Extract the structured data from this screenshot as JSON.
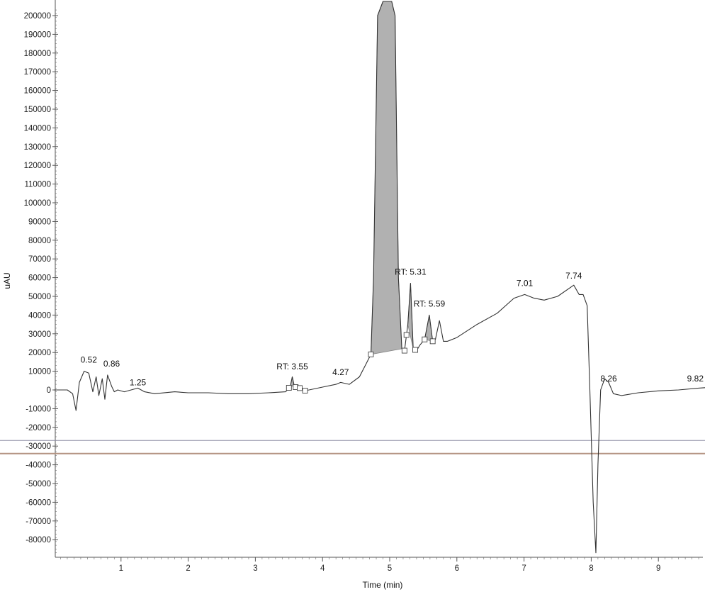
{
  "chart_data": {
    "type": "line",
    "title": "",
    "xlabel": "Time (min)",
    "ylabel": "uAU",
    "xlim": [
      0,
      9.82
    ],
    "ylim": [
      -87000,
      204000
    ],
    "x_ticks": [
      1,
      2,
      3,
      4,
      5,
      6,
      7,
      8,
      9
    ],
    "y_ticks": [
      200000,
      190000,
      180000,
      170000,
      160000,
      150000,
      140000,
      130000,
      120000,
      110000,
      100000,
      90000,
      80000,
      70000,
      60000,
      50000,
      40000,
      30000,
      20000,
      10000,
      0,
      -10000,
      -20000,
      -30000,
      -40000,
      -50000,
      -60000,
      -70000,
      -80000
    ],
    "grid": false,
    "legend": "none",
    "colors": {
      "trace": "#333333",
      "fill": "#a9a9a9",
      "ref_line_1": "#8e8ea4",
      "ref_line_2": "#b49482"
    },
    "series": [
      {
        "x": [
          0.0,
          0.2,
          0.28,
          0.33,
          0.38,
          0.45,
          0.52,
          0.58,
          0.63,
          0.67,
          0.72,
          0.76,
          0.8,
          0.86,
          0.9,
          0.95,
          1.05,
          1.15,
          1.25,
          1.35,
          1.5,
          1.8,
          2.0,
          2.3,
          2.6,
          2.9,
          3.2,
          3.45,
          3.52,
          3.55,
          3.58,
          3.62,
          3.67,
          3.72,
          3.8,
          4.0,
          4.2,
          4.27,
          4.4,
          4.55,
          4.65,
          4.72,
          4.76,
          4.82,
          4.9,
          4.97,
          5.03,
          5.08,
          5.13,
          5.18,
          5.22,
          5.27,
          5.31,
          5.35,
          5.4,
          5.45,
          5.52,
          5.59,
          5.64,
          5.68,
          5.74,
          5.8,
          5.86,
          6.0,
          6.3,
          6.6,
          6.85,
          7.01,
          7.15,
          7.3,
          7.5,
          7.74,
          7.82,
          7.88,
          7.94,
          7.98,
          8.03,
          8.07,
          8.1,
          8.14,
          8.2,
          8.26,
          8.33,
          8.45,
          8.7,
          9.0,
          9.3,
          9.6,
          9.82
        ],
        "y": [
          0,
          0,
          -2000,
          -11000,
          4000,
          10000,
          9000,
          -1000,
          7000,
          -3000,
          6000,
          -5000,
          8000,
          2000,
          -1000,
          0,
          -1000,
          0,
          1000,
          -1000,
          -2000,
          -1000,
          -1500,
          -1500,
          -2000,
          -2000,
          -1500,
          -1000,
          2000,
          7000,
          2000,
          1000,
          1000,
          -500,
          0,
          1500,
          3000,
          4000,
          3000,
          7000,
          14000,
          19000,
          60000,
          200000,
          208000,
          210000,
          208000,
          200000,
          60000,
          22000,
          21000,
          35000,
          57000,
          22000,
          21000,
          24000,
          27000,
          40000,
          26000,
          27000,
          37000,
          26000,
          26000,
          28000,
          35000,
          41000,
          49000,
          51000,
          49000,
          48000,
          50000,
          56000,
          51000,
          51000,
          45000,
          0,
          -60000,
          -87000,
          -40000,
          0,
          6000,
          4000,
          -2000,
          -3000,
          -1500,
          -500,
          0,
          1000,
          1500
        ]
      }
    ],
    "shaded_peaks": [
      {
        "x_start": 4.72,
        "x_end": 5.18
      },
      {
        "x_start": 5.27,
        "x_end": 5.35
      },
      {
        "x_start": 5.52,
        "x_end": 5.64
      },
      {
        "x_start": 3.52,
        "x_end": 3.58
      }
    ],
    "integration_markers_x": [
      3.5,
      3.6,
      3.66,
      3.74,
      4.72,
      5.22,
      5.25,
      5.38,
      5.52,
      5.64
    ],
    "peak_labels": [
      {
        "text": "0.52",
        "x": 0.52,
        "y": 13000
      },
      {
        "text": "0.86",
        "x": 0.86,
        "y": 11000
      },
      {
        "text": "1.25",
        "x": 1.25,
        "y": 1000
      },
      {
        "text": "RT: 3.55",
        "x": 3.55,
        "y": 9500
      },
      {
        "text": "4.27",
        "x": 4.27,
        "y": 6500
      },
      {
        "text": "RT: 5.31",
        "x": 5.31,
        "y": 60000
      },
      {
        "text": "RT: 5.59",
        "x": 5.59,
        "y": 43000
      },
      {
        "text": "7.01",
        "x": 7.01,
        "y": 54000
      },
      {
        "text": "7.74",
        "x": 7.74,
        "y": 58000
      },
      {
        "text": "8.26",
        "x": 8.26,
        "y": 3000
      },
      {
        "text": "9.82",
        "x": 9.82,
        "y": 3000
      }
    ],
    "reference_lines_y": [
      -27000,
      -34000
    ]
  }
}
